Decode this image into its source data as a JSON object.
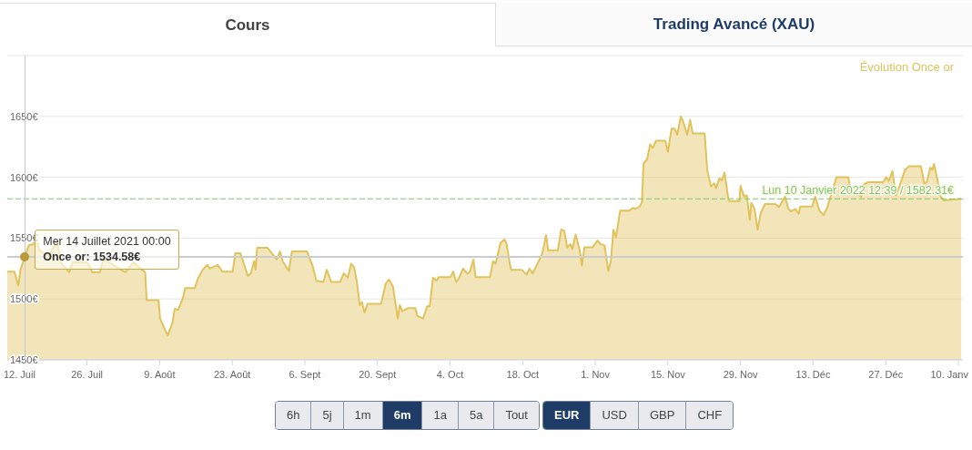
{
  "chart_data": {
    "type": "area",
    "title": "Évolution Once or",
    "color": "#e2c25a",
    "grid": "y",
    "xlim": [
      "2021-07-10T15:00",
      "2022-01-10T21:00"
    ],
    "xticks": [
      {
        "value": "2021-07-12",
        "label": "12. Juil"
      },
      {
        "value": "2021-07-26",
        "label": "26. Juil"
      },
      {
        "value": "2021-08-09",
        "label": "9. Août"
      },
      {
        "value": "2021-08-23",
        "label": "23. Août"
      },
      {
        "value": "2021-09-06",
        "label": "6. Sept"
      },
      {
        "value": "2021-09-20",
        "label": "20. Sept"
      },
      {
        "value": "2021-10-04",
        "label": "4. Oct"
      },
      {
        "value": "2021-10-18",
        "label": "18. Oct"
      },
      {
        "value": "2021-11-01",
        "label": "1. Nov"
      },
      {
        "value": "2021-11-15",
        "label": "15. Nov"
      },
      {
        "value": "2021-11-29",
        "label": "29. Nov"
      },
      {
        "value": "2021-12-13",
        "label": "13. Déc"
      },
      {
        "value": "2021-12-27",
        "label": "27. Déc"
      },
      {
        "value": "2022-01-10",
        "label": "10. Janv"
      }
    ],
    "ylim": [
      1450,
      1700
    ],
    "yticks": [
      {
        "value": 1450,
        "label": "1450€"
      },
      {
        "value": 1500,
        "label": "1500€"
      },
      {
        "value": 1550,
        "label": "1550€"
      },
      {
        "value": 1600,
        "label": "1600€"
      },
      {
        "value": 1650,
        "label": "1650€"
      },
      {
        "value": 1700,
        "label": null
      }
    ],
    "ref_lines": [
      {
        "axis": "y",
        "value": 1582.31,
        "label": "Lun 10 Janvier 2022 12:39 / 1582.31€",
        "color": "#7cc96a",
        "line_style": "dashed"
      },
      {
        "axis": "y",
        "value": 1534.58,
        "color": "#cccccc",
        "line_style": "solid"
      }
    ],
    "annotations": [
      {
        "text": "Mer 14 Juillet 2021 00:00\nOnce or: 1534.58€",
        "x": "2021-07-14",
        "y": 1534.58
      },
      "Cours",
      "Trading Avancé (XAU)",
      "6h",
      "5j",
      "1m",
      "6m",
      "1a",
      "5a",
      "Tout",
      "EUR",
      "USD",
      "GBP",
      "CHF"
    ],
    "x": [
      "2021-07-10T15:00",
      "2021-07-12T00:00",
      "2021-07-12T18:00",
      "2021-07-13T04:00",
      "2021-07-14T00:00",
      "2021-07-14T18:00",
      "2021-07-15T14:00",
      "2021-07-16T05:00",
      "2021-07-16T19:00",
      "2021-07-18T12:00",
      "2021-07-20T07:00",
      "2021-07-20T22:00",
      "2021-07-22T14:00",
      "2021-07-23T05:00",
      "2021-07-26T02:00",
      "2021-07-27T00:00",
      "2021-07-28T12:00",
      "2021-07-29T07:00",
      "2021-07-30T05:00",
      "2021-08-02T10:00",
      "2021-08-03T22:00",
      "2021-08-05T14:00",
      "2021-08-06T05:00",
      "2021-08-06T12:00",
      "2021-08-08T19:00",
      "2021-08-09T02:00",
      "2021-08-10T00:00",
      "2021-08-10T14:00",
      "2021-08-11T12:00",
      "2021-08-11T22:00",
      "2021-08-12T14:00",
      "2021-08-13T12:00",
      "2021-08-13T22:00",
      "2021-08-15T19:00",
      "2021-08-16T10:00",
      "2021-08-17T07:00",
      "2021-08-18T05:00",
      "2021-08-18T17:00",
      "2021-08-20T05:00",
      "2021-08-21T02:00",
      "2021-08-23T02:00",
      "2021-08-23T14:00",
      "2021-08-24T14:00",
      "2021-08-26T00:00",
      "2021-08-26T14:00",
      "2021-08-27T05:00",
      "2021-08-27T12:00",
      "2021-08-27T19:00",
      "2021-08-29T19:00",
      "2021-08-31T14:00",
      "2021-09-01T05:00",
      "2021-09-01T17:00",
      "2021-09-02T22:00",
      "2021-09-03T12:00",
      "2021-09-06T10:00",
      "2021-09-07T14:00",
      "2021-09-08T05:00",
      "2021-09-09T14:00",
      "2021-09-10T05:00",
      "2021-09-11T02:00",
      "2021-09-12T19:00",
      "2021-09-13T12:00",
      "2021-09-14T07:00",
      "2021-09-14T22:00",
      "2021-09-15T12:00",
      "2021-09-16T00:00",
      "2021-09-16T14:00",
      "2021-09-17T00:00",
      "2021-09-17T12:00",
      "2021-09-18T02:00",
      "2021-09-20T17:00",
      "2021-09-21T14:00",
      "2021-09-22T05:00",
      "2021-09-23T00:00",
      "2021-09-23T22:00",
      "2021-09-24T07:00",
      "2021-09-24T19:00",
      "2021-09-25T22:00",
      "2021-09-27T07:00",
      "2021-09-27T17:00",
      "2021-09-28T19:00",
      "2021-09-29T14:00",
      "2021-09-30T02:00",
      "2021-09-30T17:00",
      "2021-10-01T10:00",
      "2021-10-01T19:00",
      "2021-10-04T02:00",
      "2021-10-04T14:00",
      "2021-10-05T05:00",
      "2021-10-05T17:00",
      "2021-10-06T12:00",
      "2021-10-07T07:00",
      "2021-10-07T19:00",
      "2021-10-08T12:00",
      "2021-10-08T22:00",
      "2021-10-11T17:00",
      "2021-10-12T07:00",
      "2021-10-12T19:00",
      "2021-10-13T17:00",
      "2021-10-14T12:00",
      "2021-10-14T22:00",
      "2021-10-15T12:00",
      "2021-10-15T19:00",
      "2021-10-17T19:00",
      "2021-10-18T19:00",
      "2021-10-19T07:00",
      "2021-10-19T22:00",
      "2021-10-21T02:00",
      "2021-10-21T19:00",
      "2021-10-22T12:00",
      "2021-10-22T22:00",
      "2021-10-24T19:00",
      "2021-10-25T10:00",
      "2021-10-26T00:00",
      "2021-10-26T14:00",
      "2021-10-27T05:00",
      "2021-10-27T14:00",
      "2021-10-28T05:00",
      "2021-10-29T00:00",
      "2021-10-29T10:00",
      "2021-10-29T22:00",
      "2021-10-31T12:00",
      "2021-11-01T10:00",
      "2021-11-02T00:00",
      "2021-11-02T19:00",
      "2021-11-03T12:00",
      "2021-11-04T00:00",
      "2021-11-04T12:00",
      "2021-11-05T00:00",
      "2021-11-05T19:00",
      "2021-11-07T12:00",
      "2021-11-08T07:00",
      "2021-11-08T17:00",
      "2021-11-09T14:00",
      "2021-11-10T00:00",
      "2021-11-10T07:00",
      "2021-11-11T00:00",
      "2021-11-11T14:00",
      "2021-11-12T02:00",
      "2021-11-12T17:00",
      "2021-11-14T12:00",
      "2021-11-15T00:00",
      "2021-11-15T17:00",
      "2021-11-16T07:00",
      "2021-11-16T19:00",
      "2021-11-17T12:00",
      "2021-11-18T00:00",
      "2021-11-18T17:00",
      "2021-11-19T07:00",
      "2021-11-19T19:00",
      "2021-11-22T02:00",
      "2021-11-22T14:00",
      "2021-11-23T07:00",
      "2021-11-23T22:00",
      "2021-11-24T07:00",
      "2021-11-24T22:00",
      "2021-11-25T10:00",
      "2021-11-25T22:00",
      "2021-11-26T17:00",
      "2021-11-28T19:00",
      "2021-11-29T00:00",
      "2021-11-29T17:00",
      "2021-11-30T05:00",
      "2021-11-30T19:00",
      "2021-12-01T02:00",
      "2021-12-01T17:00",
      "2021-12-02T07:00",
      "2021-12-02T22:00",
      "2021-12-03T17:00",
      "2021-12-05T17:00",
      "2021-12-06T10:00",
      "2021-12-07T14:00",
      "2021-12-08T05:00",
      "2021-12-08T17:00",
      "2021-12-09T14:00",
      "2021-12-10T05:00",
      "2021-12-10T12:00",
      "2021-12-12T19:00",
      "2021-12-13T10:00",
      "2021-12-14T05:00",
      "2021-12-15T00:00",
      "2021-12-15T17:00",
      "2021-12-17T12:00",
      "2021-12-19T19:00",
      "2021-12-20T05:00",
      "2021-12-21T14:00",
      "2021-12-22T07:00",
      "2021-12-22T17:00",
      "2021-12-23T14:00",
      "2021-12-26T12:00",
      "2021-12-27T02:00",
      "2021-12-27T14:00",
      "2021-12-28T07:00",
      "2021-12-28T22:00",
      "2021-12-29T10:00",
      "2021-12-30T17:00",
      "2021-12-31T12:00",
      "2022-01-02T19:00",
      "2022-01-03T10:00",
      "2022-01-03T22:00",
      "2022-01-04T14:00",
      "2022-01-05T00:00",
      "2022-01-05T07:00",
      "2022-01-05T22:00",
      "2022-01-06T14:00",
      "2022-01-07T05:00",
      "2022-01-10T12:39"
    ],
    "values": [
      1522.5,
      1522.5,
      1511,
      1524,
      1534.58,
      1544,
      1545,
      1550,
      1540,
      1535,
      1547,
      1530,
      1522,
      1530,
      1530,
      1522,
      1522,
      1535,
      1530,
      1522,
      1530,
      1524,
      1522,
      1499,
      1499,
      1484,
      1475,
      1470,
      1481,
      1492,
      1491,
      1501,
      1509,
      1509,
      1517,
      1524,
      1528,
      1525,
      1528,
      1522.5,
      1522.5,
      1537.5,
      1537.5,
      1519,
      1521,
      1531,
      1524,
      1542,
      1542,
      1532.5,
      1539,
      1531,
      1523,
      1539,
      1539,
      1526,
      1515,
      1514,
      1524,
      1514,
      1514,
      1521,
      1517.5,
      1529,
      1526,
      1515,
      1495,
      1497.5,
      1489,
      1496,
      1496,
      1512.5,
      1516,
      1510,
      1484,
      1495,
      1490,
      1492.5,
      1492.5,
      1486,
      1484,
      1494,
      1494,
      1517.5,
      1515,
      1518,
      1518,
      1522.5,
      1514,
      1517,
      1525,
      1521,
      1522,
      1532.5,
      1518,
      1518,
      1531,
      1529,
      1546,
      1549,
      1545,
      1529,
      1524,
      1524,
      1520,
      1525,
      1521,
      1531,
      1537.5,
      1552.5,
      1540,
      1540,
      1557,
      1556,
      1542.5,
      1545,
      1541,
      1553,
      1540,
      1527.5,
      1542.5,
      1542.5,
      1548,
      1545,
      1544,
      1523,
      1531,
      1557,
      1551,
      1572.5,
      1572.5,
      1575,
      1574,
      1576,
      1580,
      1611,
      1615,
      1627,
      1624,
      1630,
      1630,
      1621,
      1640,
      1640,
      1635,
      1650,
      1645,
      1635,
      1647,
      1636,
      1636,
      1606,
      1592.5,
      1595,
      1591,
      1599,
      1597.5,
      1604,
      1580.5,
      1580.5,
      1593,
      1584,
      1585,
      1565,
      1579,
      1574,
      1557,
      1571,
      1578,
      1578,
      1575.5,
      1584,
      1574,
      1572,
      1574,
      1570,
      1576,
      1576,
      1584,
      1572.5,
      1569,
      1575,
      1600,
      1600,
      1587.5,
      1586,
      1584,
      1594,
      1596,
      1596,
      1600,
      1597,
      1605,
      1585,
      1590,
      1606,
      1609,
      1609,
      1595,
      1596,
      1608,
      1606,
      1611,
      1599,
      1584,
      1581,
      1582.31
    ]
  }
}
